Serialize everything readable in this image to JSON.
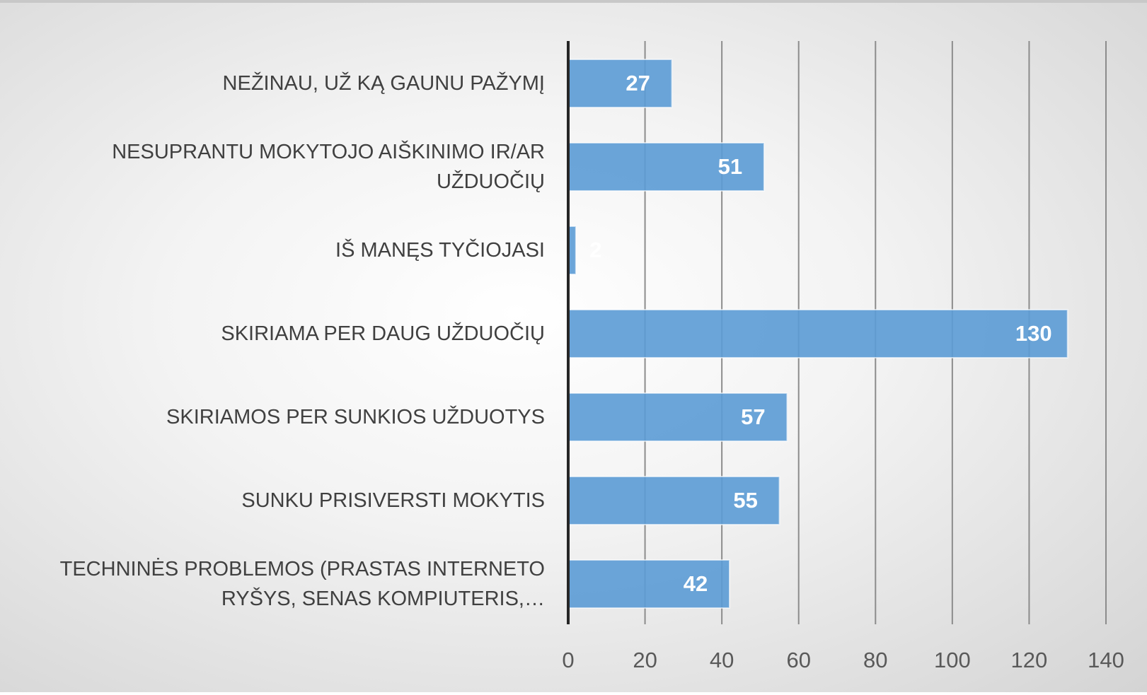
{
  "chart_data": {
    "type": "bar",
    "orientation": "horizontal",
    "categories": [
      "NEŽINAU, UŽ KĄ GAUNU PAŽYMĮ",
      "NESUPRANTU MOKYTOJO AIŠKINIMO IR/AR UŽDUOČIŲ",
      "IŠ MANĘS TYČIOJASI",
      "SKIRIAMA PER DAUG UŽDUOČIŲ",
      "SKIRIAMOS PER SUNKIOS UŽDUOTYS",
      "SUNKU PRISIVERSTI MOKYTIS",
      "TECHNINĖS PROBLEMOS (PRASTAS INTERNETO RYŠYS, SENAS KOMPIUTERIS,…"
    ],
    "values": [
      27,
      51,
      2,
      130,
      57,
      55,
      42
    ],
    "color": "#5b9bd5",
    "xlim": [
      0,
      140
    ],
    "xticks": [
      0,
      20,
      40,
      60,
      80,
      100,
      120,
      140
    ],
    "grid": true
  }
}
